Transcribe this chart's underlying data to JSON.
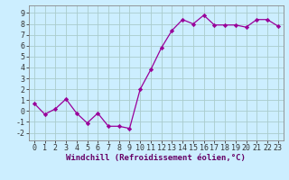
{
  "x": [
    0,
    1,
    2,
    3,
    4,
    5,
    6,
    7,
    8,
    9,
    10,
    11,
    12,
    13,
    14,
    15,
    16,
    17,
    18,
    19,
    20,
    21,
    22,
    23
  ],
  "y": [
    0.7,
    -0.3,
    0.2,
    1.1,
    -0.2,
    -1.1,
    -0.2,
    -1.4,
    -1.4,
    -1.6,
    2.0,
    3.8,
    5.8,
    7.4,
    8.4,
    8.0,
    8.8,
    7.9,
    7.9,
    7.9,
    7.7,
    8.4,
    8.4,
    7.8
  ],
  "line_color": "#990099",
  "marker": "D",
  "markersize": 2.2,
  "linewidth": 0.9,
  "xlabel": "Windchill (Refroidissement éolien,°C)",
  "xlabel_fontsize": 6.5,
  "xlim": [
    -0.5,
    23.5
  ],
  "ylim": [
    -2.7,
    9.7
  ],
  "yticks": [
    -2,
    -1,
    0,
    1,
    2,
    3,
    4,
    5,
    6,
    7,
    8,
    9
  ],
  "xticks": [
    0,
    1,
    2,
    3,
    4,
    5,
    6,
    7,
    8,
    9,
    10,
    11,
    12,
    13,
    14,
    15,
    16,
    17,
    18,
    19,
    20,
    21,
    22,
    23
  ],
  "background_color": "#cceeff",
  "grid_color": "#aacccc",
  "tick_fontsize": 6.0,
  "spine_color": "#888888"
}
